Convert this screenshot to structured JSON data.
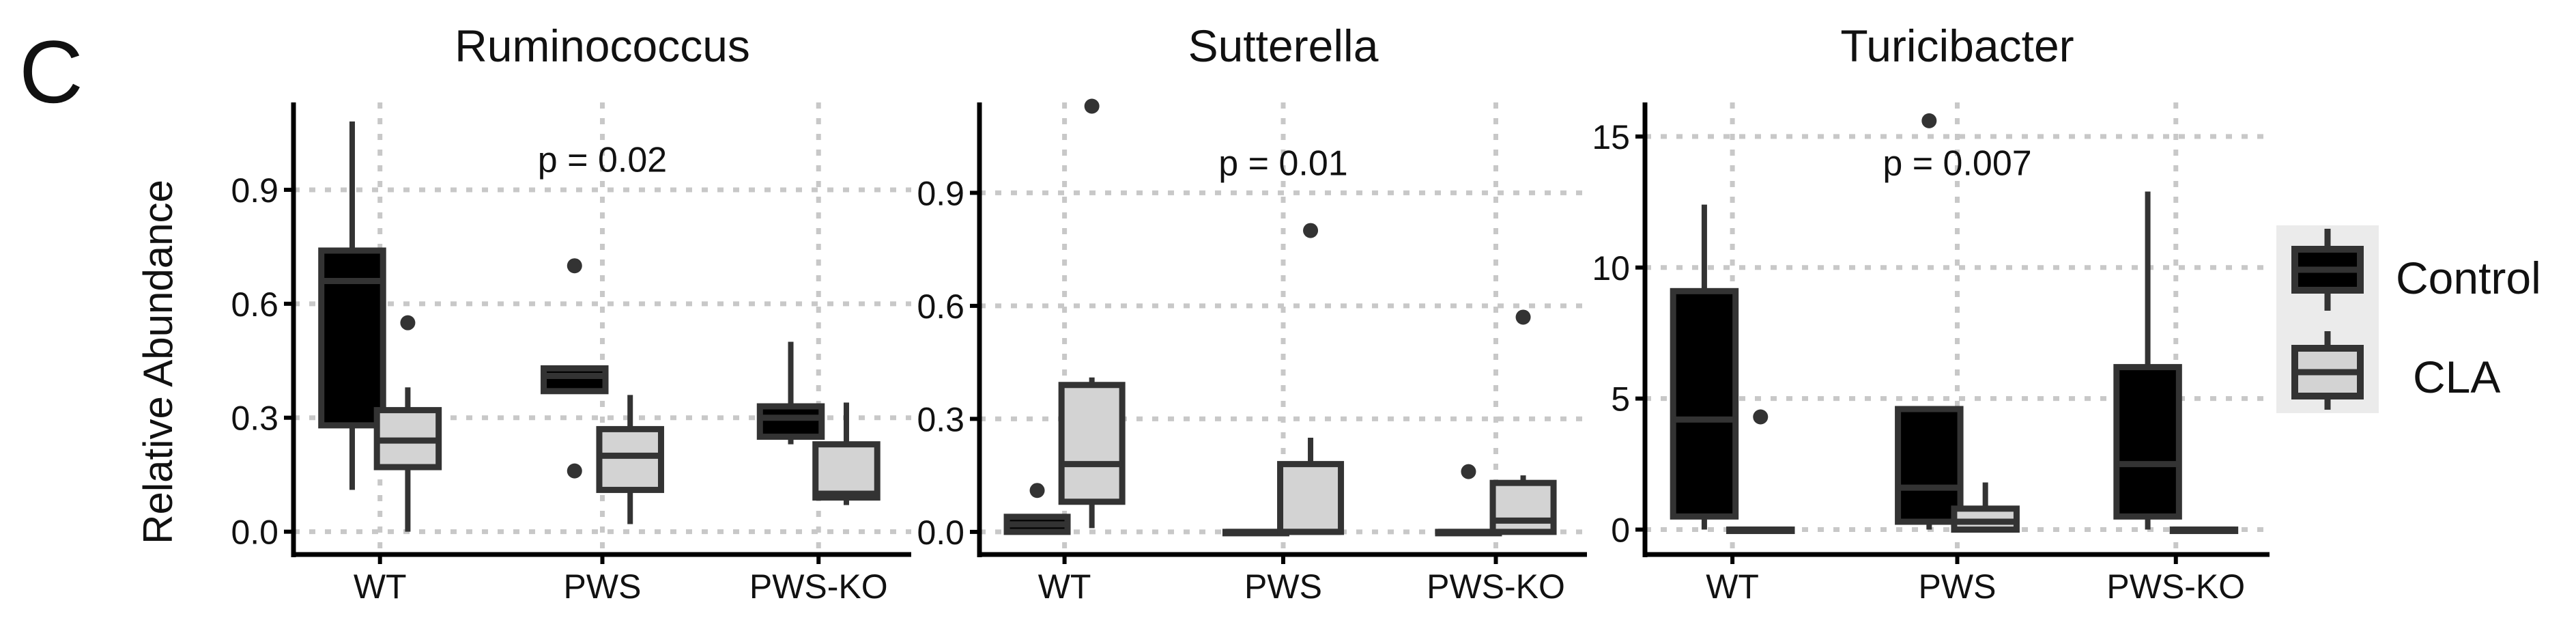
{
  "panel_label": "C",
  "y_axis_label": "Relative Abundance",
  "chart_data": [
    {
      "type": "boxplot",
      "title": "Ruminococcus",
      "ylabel": "Relative Abundance",
      "categories": [
        "WT",
        "PWS",
        "PWS-KO"
      ],
      "ylim": [
        -0.06,
        1.13
      ],
      "yticks": [
        0.0,
        0.3,
        0.6,
        0.9
      ],
      "ytick_labels": [
        "0.0",
        "0.3",
        "0.6",
        "0.9"
      ],
      "annotation": "p = 0.02",
      "annotation_y": 0.98,
      "series": [
        {
          "name": "Control",
          "boxes": [
            {
              "min": 0.11,
              "q1": 0.28,
              "median": 0.66,
              "q3": 0.74,
              "max": 1.08,
              "outliers": []
            },
            {
              "min": 0.37,
              "q1": 0.37,
              "median": 0.41,
              "q3": 0.43,
              "max": 0.43,
              "outliers": [
                0.7,
                0.16
              ]
            },
            {
              "min": 0.23,
              "q1": 0.25,
              "median": 0.3,
              "q3": 0.33,
              "max": 0.5,
              "outliers": []
            }
          ]
        },
        {
          "name": "CLA",
          "boxes": [
            {
              "min": 0.0,
              "q1": 0.17,
              "median": 0.24,
              "q3": 0.32,
              "max": 0.38,
              "outliers": [
                0.55
              ]
            },
            {
              "min": 0.02,
              "q1": 0.11,
              "median": 0.2,
              "q3": 0.27,
              "max": 0.36,
              "outliers": []
            },
            {
              "min": 0.07,
              "q1": 0.09,
              "median": 0.1,
              "q3": 0.23,
              "max": 0.34,
              "outliers": []
            }
          ]
        }
      ]
    },
    {
      "type": "boxplot",
      "title": "Sutterella",
      "categories": [
        "WT",
        "PWS",
        "PWS-KO"
      ],
      "ylim": [
        -0.06,
        1.14
      ],
      "yticks": [
        0.0,
        0.3,
        0.6,
        0.9
      ],
      "ytick_labels": [
        "0.0",
        "0.3",
        "0.6",
        "0.9"
      ],
      "annotation": "p = 0.01",
      "annotation_y": 0.98,
      "series": [
        {
          "name": "Control",
          "boxes": [
            {
              "min": 0.0,
              "q1": 0.0,
              "median": 0.02,
              "q3": 0.04,
              "max": 0.04,
              "outliers": [
                0.11
              ]
            },
            {
              "min": 0.0,
              "q1": 0.0,
              "median": 0.0,
              "q3": 0.0,
              "max": 0.0,
              "outliers": []
            },
            {
              "min": 0.0,
              "q1": 0.0,
              "median": 0.0,
              "q3": 0.0,
              "max": 0.0,
              "outliers": [
                0.16
              ]
            }
          ]
        },
        {
          "name": "CLA",
          "boxes": [
            {
              "min": 0.01,
              "q1": 0.08,
              "median": 0.18,
              "q3": 0.39,
              "max": 0.41,
              "outliers": [
                1.13
              ]
            },
            {
              "min": 0.0,
              "q1": 0.0,
              "median": 0.0,
              "q3": 0.18,
              "max": 0.25,
              "outliers": [
                0.8
              ]
            },
            {
              "min": 0.0,
              "q1": 0.0,
              "median": 0.03,
              "q3": 0.13,
              "max": 0.15,
              "outliers": [
                0.57
              ]
            }
          ]
        }
      ]
    },
    {
      "type": "boxplot",
      "title": "Turicibacter",
      "categories": [
        "WT",
        "PWS",
        "PWS-KO"
      ],
      "ylim": [
        -0.95,
        16.3
      ],
      "yticks": [
        0,
        5,
        10,
        15
      ],
      "ytick_labels": [
        "0",
        "5",
        "10",
        "15"
      ],
      "annotation": "p = 0.007",
      "annotation_y": 14.0,
      "series": [
        {
          "name": "Control",
          "boxes": [
            {
              "min": 0.0,
              "q1": 0.5,
              "median": 4.2,
              "q3": 9.1,
              "max": 12.4,
              "outliers": []
            },
            {
              "min": 0.0,
              "q1": 0.3,
              "median": 1.6,
              "q3": 4.6,
              "max": 4.6,
              "outliers": [
                15.6
              ]
            },
            {
              "min": 0.0,
              "q1": 0.5,
              "median": 2.5,
              "q3": 6.2,
              "max": 12.9,
              "outliers": []
            }
          ]
        },
        {
          "name": "CLA",
          "boxes": [
            {
              "min": 0.0,
              "q1": 0.0,
              "median": 0.0,
              "q3": 0.0,
              "max": 0.0,
              "outliers": [
                4.3
              ]
            },
            {
              "min": 0.0,
              "q1": 0.0,
              "median": 0.3,
              "q3": 0.8,
              "max": 1.8,
              "outliers": []
            },
            {
              "min": 0.0,
              "q1": 0.0,
              "median": 0.0,
              "q3": 0.0,
              "max": 0.0,
              "outliers": []
            }
          ]
        }
      ]
    }
  ],
  "legend": {
    "items": [
      {
        "label": "Control",
        "fill": "#000000"
      },
      {
        "label": "CLA",
        "fill": "#d3d3d3"
      }
    ]
  },
  "colors": {
    "control_fill": "#000000",
    "cla_fill": "#d3d3d3",
    "box_stroke": "#333333",
    "grid": "#c8c8c8",
    "axis": "#000000"
  }
}
